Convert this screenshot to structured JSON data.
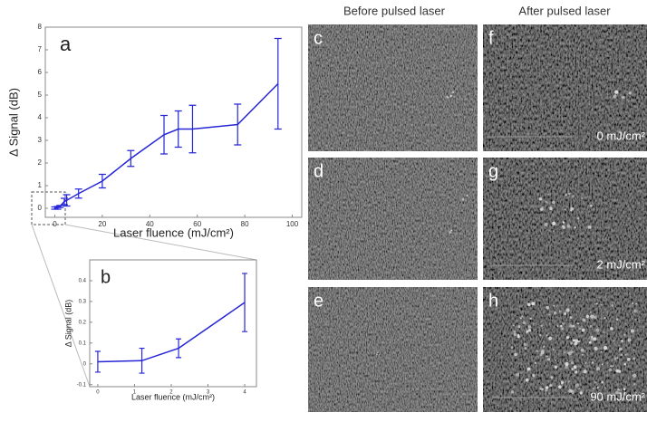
{
  "chart_data": [
    {
      "type": "line",
      "annotation": "a",
      "xlabel": "Laser fluence (mJ/cm²)",
      "ylabel": "Δ Signal (dB)",
      "x": [
        0,
        1.2,
        2.2,
        4,
        5,
        10,
        20,
        32,
        46,
        52,
        58,
        77,
        94
      ],
      "series": [
        {
          "color": "#2626d6",
          "values": [
            0.01,
            0.02,
            0.08,
            0.3,
            0.35,
            0.65,
            1.2,
            2.2,
            3.25,
            3.5,
            3.5,
            3.7,
            5.5
          ],
          "errors": [
            0.05,
            0.06,
            0.045,
            0.14,
            0.25,
            0.2,
            0.3,
            0.35,
            0.85,
            0.8,
            1.05,
            0.9,
            2.0
          ]
        }
      ],
      "xlim": [
        -4,
        104
      ],
      "ylim": [
        -0.4,
        8
      ],
      "xticks": [
        0,
        20,
        40,
        60,
        80,
        100
      ],
      "yticks": [
        0,
        1,
        2,
        3,
        4,
        5,
        6,
        7,
        8
      ]
    },
    {
      "type": "line",
      "annotation": "b",
      "xlabel": "Laser fluence (mJ/cm²)",
      "ylabel": "Δ Signal (dB)",
      "x": [
        0,
        1.2,
        2.2,
        4
      ],
      "series": [
        {
          "color": "#2626d6",
          "values": [
            0.01,
            0.015,
            0.075,
            0.295
          ],
          "errors": [
            0.05,
            0.06,
            0.045,
            0.14
          ]
        }
      ],
      "xlim": [
        -0.22,
        4.32
      ],
      "ylim": [
        -0.11,
        0.5
      ],
      "xticks": [
        0,
        1,
        2,
        3,
        4
      ],
      "yticks": [
        -0.1,
        0,
        0.1,
        0.2,
        0.3,
        0.4
      ]
    }
  ],
  "images": {
    "column_headers": [
      "Before pulsed laser",
      "After pulsed laser"
    ],
    "letters": [
      "c",
      "f",
      "d",
      "g",
      "e",
      "h"
    ],
    "fluence_labels": [
      "0 mJ/cm²",
      "2 mJ/cm²",
      "90 mJ/cm²"
    ]
  }
}
